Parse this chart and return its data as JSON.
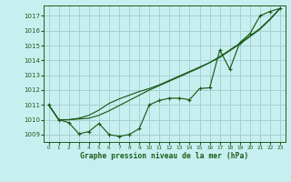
{
  "title": "Graphe pression niveau de la mer (hPa)",
  "background_color": "#c8eff0",
  "grid_color": "#a8d0d0",
  "line_color": "#1a5c1a",
  "ylim": [
    1008.5,
    1017.7
  ],
  "xlim": [
    -0.5,
    23.5
  ],
  "yticks": [
    1009,
    1010,
    1011,
    1012,
    1013,
    1014,
    1015,
    1016,
    1017
  ],
  "xticks": [
    0,
    1,
    2,
    3,
    4,
    5,
    6,
    7,
    8,
    9,
    10,
    11,
    12,
    13,
    14,
    15,
    16,
    17,
    18,
    19,
    20,
    21,
    22,
    23
  ],
  "series1": [
    1011.0,
    1010.0,
    1009.8,
    1009.05,
    1009.2,
    1009.75,
    1009.0,
    1008.88,
    1009.0,
    1009.4,
    1011.0,
    1011.3,
    1011.45,
    1011.45,
    1011.35,
    1012.1,
    1012.15,
    1014.7,
    1013.4,
    1015.2,
    1015.8,
    1017.0,
    1017.3,
    1017.5
  ],
  "series2": [
    1011.0,
    1010.0,
    1010.0,
    1010.05,
    1010.1,
    1010.3,
    1010.6,
    1010.95,
    1011.3,
    1011.65,
    1012.0,
    1012.3,
    1012.6,
    1012.9,
    1013.2,
    1013.5,
    1013.85,
    1014.2,
    1014.65,
    1015.1,
    1015.6,
    1016.1,
    1016.75,
    1017.5
  ],
  "series3": [
    1011.0,
    1010.0,
    1010.0,
    1010.1,
    1010.3,
    1010.65,
    1011.1,
    1011.4,
    1011.65,
    1011.9,
    1012.1,
    1012.35,
    1012.65,
    1012.95,
    1013.25,
    1013.55,
    1013.85,
    1014.25,
    1014.7,
    1015.15,
    1015.65,
    1016.15,
    1016.8,
    1017.5
  ]
}
